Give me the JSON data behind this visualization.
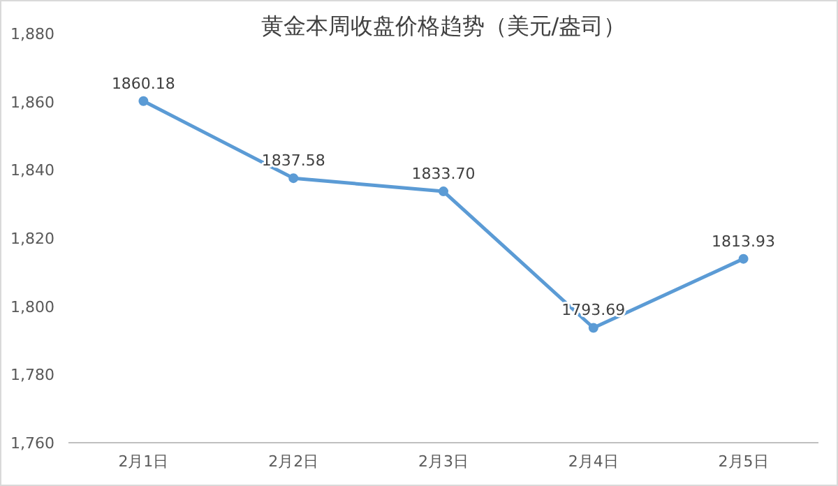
{
  "chart_data": {
    "type": "line",
    "title": "黄金本周收盘价格趋势（美元/盎司）",
    "categories": [
      "2月1日",
      "2月2日",
      "2月3日",
      "2月4日",
      "2月5日"
    ],
    "series": [
      {
        "color": "#5b9bd5",
        "values": [
          1860.18,
          1837.58,
          1833.7,
          1793.69,
          1813.93
        ],
        "value_labels": [
          "1860.18",
          "1837.58",
          "1833.70",
          "1793.69",
          "1813.93"
        ]
      }
    ],
    "ylim": [
      1760,
      1880
    ],
    "yticks": [
      {
        "value": 1760,
        "label": "1,760"
      },
      {
        "value": 1780,
        "label": "1,780"
      },
      {
        "value": 1800,
        "label": "1,800"
      },
      {
        "value": 1820,
        "label": "1,820"
      },
      {
        "value": 1840,
        "label": "1,840"
      },
      {
        "value": 1860,
        "label": "1,860"
      },
      {
        "value": 1880,
        "label": "1,880"
      }
    ],
    "grid": false,
    "marker": "circle",
    "line_style": "solid"
  }
}
